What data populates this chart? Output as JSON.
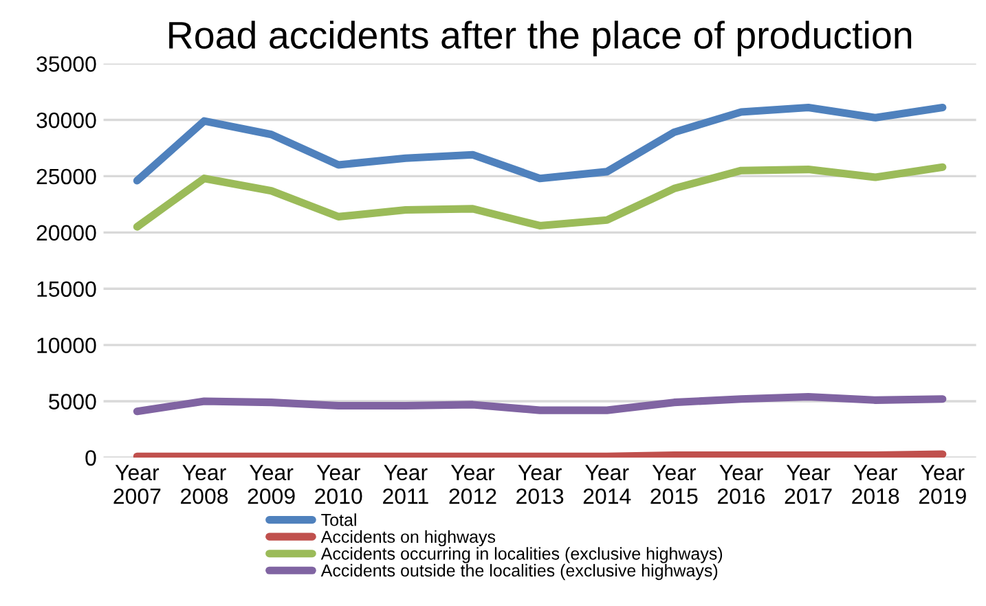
{
  "chart_data": {
    "type": "line",
    "title": "Road accidents after the place of production",
    "categories": [
      "Year\n2007",
      "Year\n2008",
      "Year\n2009",
      "Year\n2010",
      "Year\n2011",
      "Year\n2012",
      "Year\n2013",
      "Year\n2014",
      "Year\n2015",
      "Year\n2016",
      "Year\n2017",
      "Year\n2018",
      "Year\n2019"
    ],
    "series": [
      {
        "name": "Total",
        "color": "#4f81bd",
        "values": [
          24600,
          29900,
          28700,
          26000,
          26600,
          26900,
          24800,
          25400,
          28900,
          30700,
          31100,
          30200,
          31100
        ]
      },
      {
        "name": "Accidents on highways",
        "color": "#c0504d",
        "values": [
          100,
          100,
          100,
          100,
          100,
          100,
          100,
          100,
          200,
          200,
          200,
          200,
          300
        ]
      },
      {
        "name": "Accidents occurring in localities (exclusive highways)",
        "color": "#9bbb59",
        "values": [
          20500,
          24800,
          23700,
          21400,
          22000,
          22100,
          20600,
          21100,
          23900,
          25500,
          25600,
          24900,
          25800
        ]
      },
      {
        "name": "Accidents outside the localities (exclusive highways)",
        "color": "#8064a2",
        "values": [
          4100,
          5000,
          4900,
          4600,
          4600,
          4700,
          4200,
          4200,
          4900,
          5200,
          5400,
          5100,
          5200
        ]
      }
    ],
    "ylim": [
      0,
      35000
    ],
    "yticks": [
      0,
      5000,
      10000,
      15000,
      20000,
      25000,
      30000,
      35000
    ],
    "grid": "y",
    "legend": "bottom",
    "marker": "none",
    "line_style": "solid"
  }
}
